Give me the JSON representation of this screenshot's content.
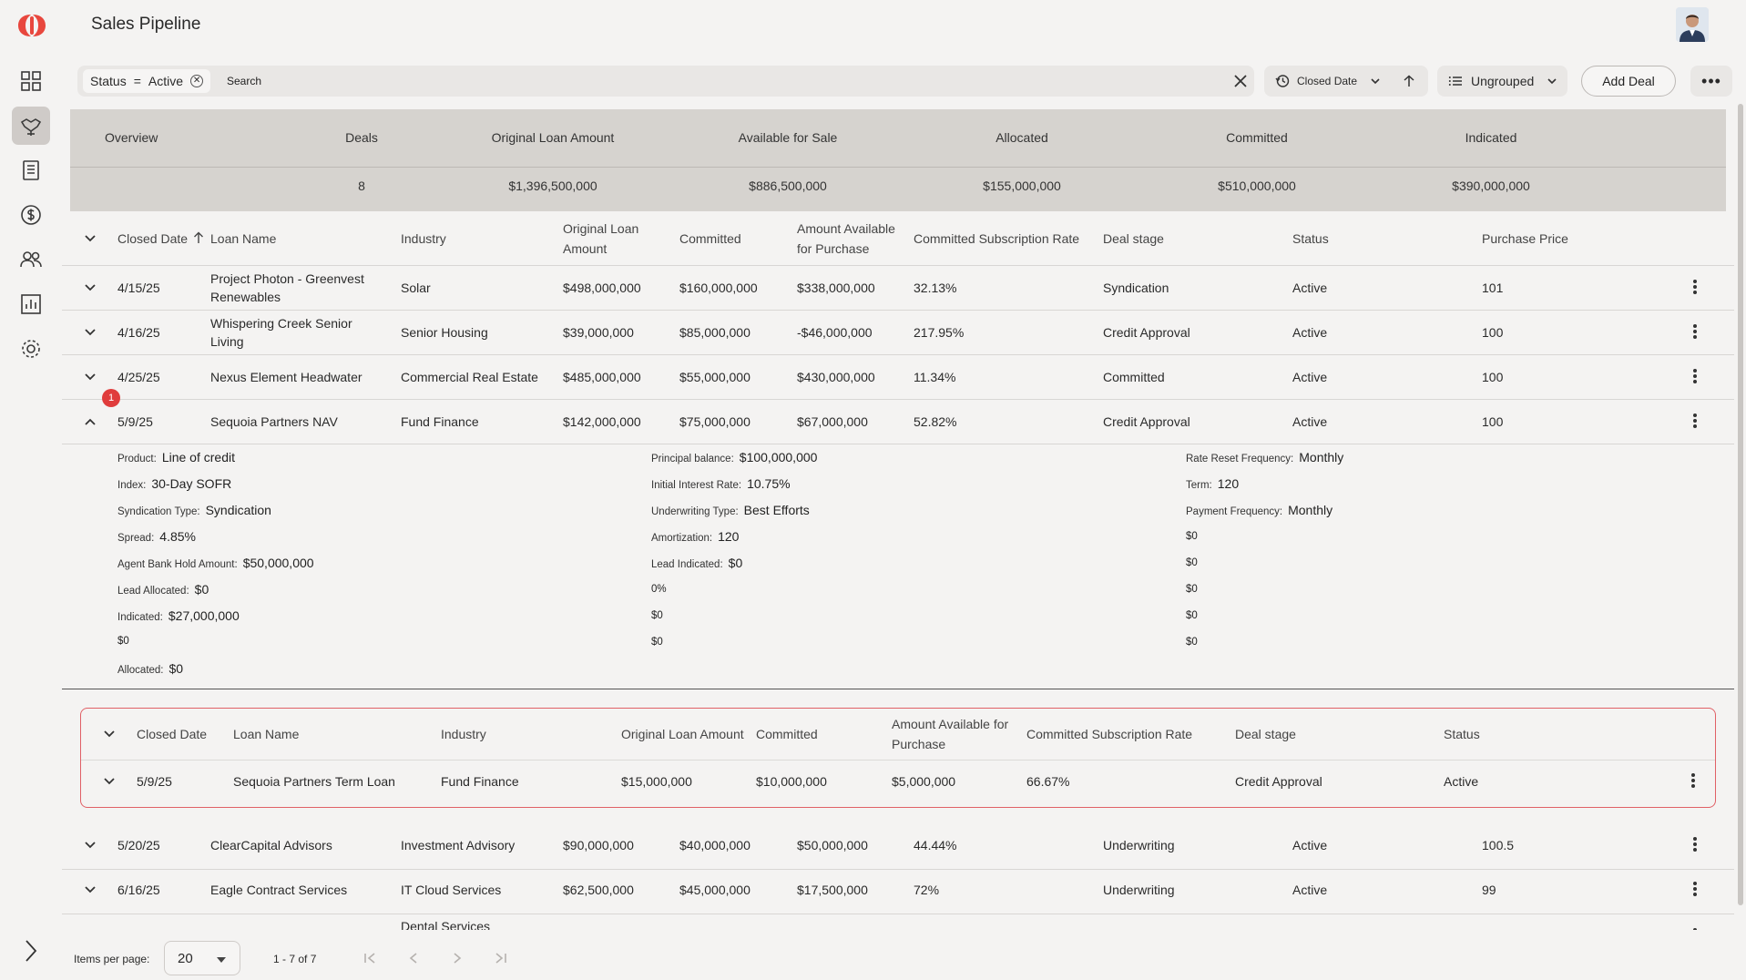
{
  "app": {
    "title": "Sales Pipeline"
  },
  "sidebar": {
    "items": [
      {
        "name": "dashboard"
      },
      {
        "name": "deals"
      },
      {
        "name": "documents"
      },
      {
        "name": "finance"
      },
      {
        "name": "contacts"
      },
      {
        "name": "reports"
      },
      {
        "name": "settings"
      }
    ]
  },
  "toolbar": {
    "filter_chip": {
      "field": "Status",
      "op": "=",
      "value": "Active"
    },
    "search_placeholder": "Search",
    "sort_label": "Closed Date",
    "group_label": "Ungrouped",
    "add_deal_label": "Add Deal"
  },
  "summary": {
    "headers": [
      "Overview",
      "Deals",
      "Original Loan Amount",
      "Available for Sale",
      "Allocated",
      "Committed",
      "Indicated"
    ],
    "values": [
      "",
      "8",
      "$1,396,500,000",
      "$886,500,000",
      "$155,000,000",
      "$510,000,000",
      "$390,000,000"
    ]
  },
  "table": {
    "columns": [
      "Closed Date",
      "Loan Name",
      "Industry",
      "Original Loan Amount",
      "Committed",
      "Amount Available for Purchase",
      "Committed Subscription Rate",
      "Deal stage",
      "Status",
      "Purchase Price"
    ],
    "rows": [
      {
        "date": "4/15/25",
        "name": "Project Photon - Greenvest Renewables",
        "industry": "Solar",
        "original": "$498,000,000",
        "committed": "$160,000,000",
        "available": "$338,000,000",
        "rate": "32.13%",
        "stage": "Syndication",
        "status": "Active",
        "price": "101"
      },
      {
        "date": "4/16/25",
        "name": "Whispering Creek Senior Living",
        "industry": "Senior Housing",
        "original": "$39,000,000",
        "committed": "$85,000,000",
        "available": "-$46,000,000",
        "rate": "217.95%",
        "stage": "Credit Approval",
        "status": "Active",
        "price": "100"
      },
      {
        "date": "4/25/25",
        "name": "Nexus Element Headwater",
        "industry": "Commercial Real Estate",
        "original": "$485,000,000",
        "committed": "$55,000,000",
        "available": "$430,000,000",
        "rate": "11.34%",
        "stage": "Committed",
        "status": "Active",
        "price": "100"
      },
      {
        "date": "5/9/25",
        "name": "Sequoia Partners NAV",
        "industry": "Fund Finance",
        "original": "$142,000,000",
        "committed": "$75,000,000",
        "available": "$67,000,000",
        "rate": "52.82%",
        "stage": "Credit Approval",
        "status": "Active",
        "price": "100",
        "badge": "1"
      },
      {
        "date": "5/20/25",
        "name": "ClearCapital Advisors",
        "industry": "Investment Advisory",
        "original": "$90,000,000",
        "committed": "$40,000,000",
        "available": "$50,000,000",
        "rate": "44.44%",
        "stage": "Underwriting",
        "status": "Active",
        "price": "100.5"
      },
      {
        "date": "6/16/25",
        "name": "Eagle Contract Services",
        "industry": "IT Cloud Services",
        "original": "$62,500,000",
        "committed": "$45,000,000",
        "available": "$17,500,000",
        "rate": "72%",
        "stage": "Underwriting",
        "status": "Active",
        "price": "99"
      },
      {
        "date": "",
        "name": "",
        "industry": "Dental Services",
        "original": "",
        "committed": "",
        "available": "",
        "rate": "",
        "stage": "",
        "status": "",
        "price": ""
      }
    ]
  },
  "detail": {
    "col1": [
      {
        "label": "Product:",
        "value": "Line of credit"
      },
      {
        "label": "Index:",
        "value": "30-Day SOFR"
      },
      {
        "label": "Syndication Type:",
        "value": "Syndication"
      },
      {
        "label": "Spread:",
        "value": "4.85%"
      },
      {
        "label": "Agent Bank Hold Amount:",
        "value": "$50,000,000"
      },
      {
        "label": "Lead Allocated:",
        "value": "$0"
      },
      {
        "label": "Indicated:",
        "value": "$27,000,000"
      },
      {
        "label": "",
        "value": "$0"
      },
      {
        "label": "Allocated:",
        "value": "$0"
      }
    ],
    "col2": [
      {
        "label": "Principal balance:",
        "value": "$100,000,000"
      },
      {
        "label": "Initial Interest Rate:",
        "value": "10.75%"
      },
      {
        "label": "Underwriting Type:",
        "value": "Best Efforts"
      },
      {
        "label": "Amortization:",
        "value": "120"
      },
      {
        "label": "Lead Indicated:",
        "value": "$0"
      },
      {
        "label": "",
        "value": "0%"
      },
      {
        "label": "",
        "value": "$0"
      },
      {
        "label": "",
        "value": "$0"
      }
    ],
    "col3": [
      {
        "label": "Rate Reset Frequency:",
        "value": "Monthly"
      },
      {
        "label": "Term:",
        "value": "120"
      },
      {
        "label": "Payment Frequency:",
        "value": "Monthly"
      },
      {
        "label": "",
        "value": "$0"
      },
      {
        "label": "",
        "value": "$0"
      },
      {
        "label": "",
        "value": "$0"
      },
      {
        "label": "",
        "value": "$0"
      },
      {
        "label": "",
        "value": "$0"
      }
    ]
  },
  "subtable": {
    "columns": [
      "Closed Date",
      "Loan Name",
      "Industry",
      "Original Loan Amount",
      "Committed",
      "Amount Available for Purchase",
      "Committed Subscription Rate",
      "Deal stage",
      "Status"
    ],
    "row": {
      "date": "5/9/25",
      "name": "Sequoia Partners Term Loan",
      "industry": "Fund Finance",
      "original": "$15,000,000",
      "committed": "$10,000,000",
      "available": "$5,000,000",
      "rate": "66.67%",
      "stage": "Credit Approval",
      "status": "Active"
    }
  },
  "footer": {
    "items_per_page_label": "Items per page:",
    "items_per_page": "20",
    "range": "1 - 7 of 7"
  },
  "colors": {
    "accent": "#e8473e",
    "highlight_border": "#e06066",
    "active_nav": "#cfcbc8"
  }
}
